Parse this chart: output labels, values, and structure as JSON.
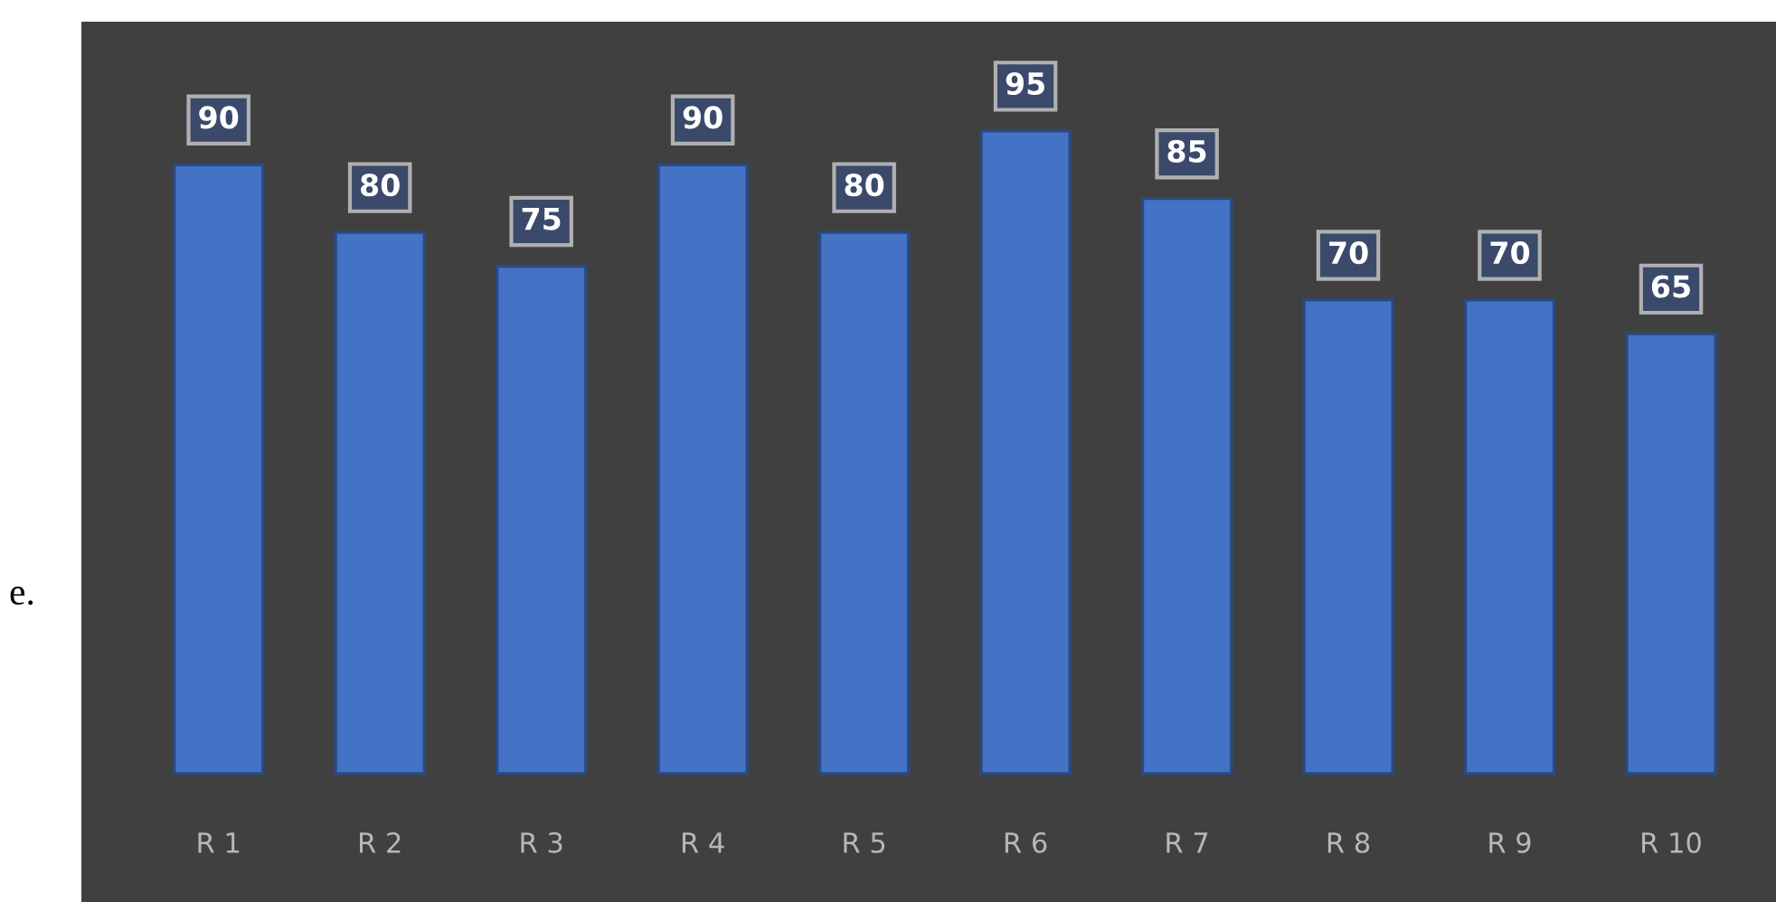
{
  "chart_data": {
    "type": "bar",
    "categories": [
      "R 1",
      "R 2",
      "R 3",
      "R 4",
      "R 5",
      "R 6",
      "R 7",
      "R 8",
      "R 9",
      "R 10"
    ],
    "values": [
      90,
      80,
      75,
      90,
      80,
      95,
      85,
      70,
      70,
      65
    ],
    "color": "#4472c4",
    "data_labels": true,
    "annotations": [
      "e."
    ]
  }
}
